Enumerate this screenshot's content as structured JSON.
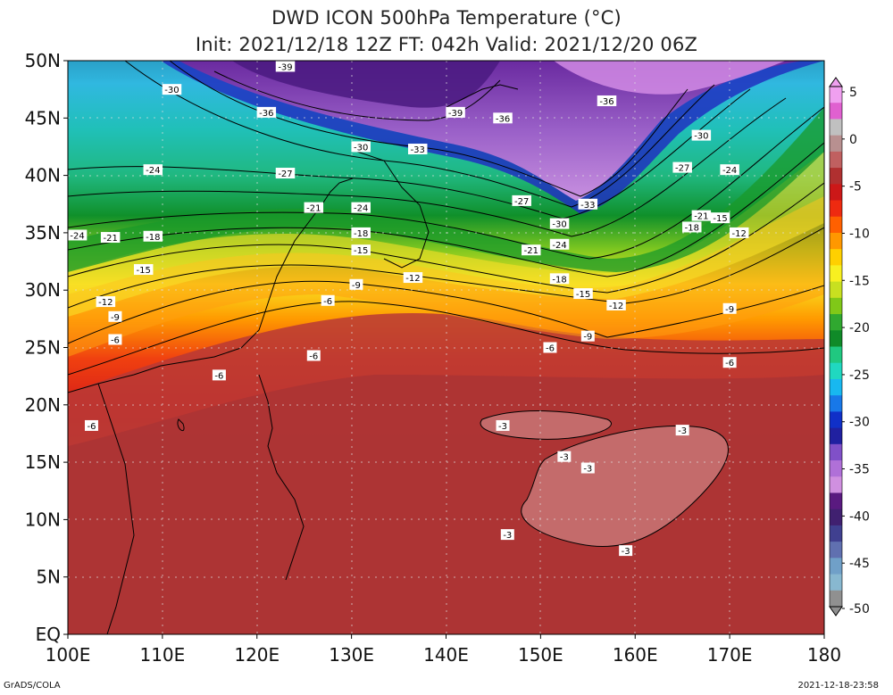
{
  "title": "DWD ICON 500hPa Temperature (°C)",
  "subtitle": "Init: 2021/12/18 12Z  FT: 042h  Valid: 2021/12/20 06Z",
  "footer_left": "GrADS/COLA",
  "footer_right": "2021-12-18-23:58",
  "lat_labels": [
    "EQ",
    "5N",
    "10N",
    "15N",
    "20N",
    "25N",
    "30N",
    "35N",
    "40N",
    "45N",
    "50N"
  ],
  "lon_labels": [
    "100E",
    "110E",
    "120E",
    "130E",
    "140E",
    "150E",
    "160E",
    "170E",
    "180"
  ],
  "colorbar": {
    "labels": [
      "5",
      "0",
      "-5",
      "-10",
      "-15",
      "-20",
      "-25",
      "-30",
      "-35",
      "-40",
      "-45",
      "-50"
    ],
    "colors": [
      "#f0a0f0",
      "#e060d0",
      "#c0c0c0",
      "#b89090",
      "#c06060",
      "#b03030",
      "#cc1818",
      "#ee2a10",
      "#ff6000",
      "#ff9800",
      "#ffd000",
      "#f8f020",
      "#c8e020",
      "#80c818",
      "#30a830",
      "#108a28",
      "#20c880",
      "#20d8c0",
      "#18b8f0",
      "#1878e8",
      "#1030c8",
      "#2020a0",
      "#8050c8",
      "#b070d8",
      "#d090e0",
      "#5a1a80",
      "#402070",
      "#404090",
      "#6070b0",
      "#70a0c8",
      "#88b8d0",
      "#909090"
    ]
  },
  "contour_labels": [
    {
      "text": "-39",
      "lon": 123,
      "lat": 49.5
    },
    {
      "text": "-30",
      "lon": 111,
      "lat": 47.5
    },
    {
      "text": "-36",
      "lon": 121,
      "lat": 45.5
    },
    {
      "text": "-39",
      "lon": 141,
      "lat": 45.5
    },
    {
      "text": "-36",
      "lon": 146,
      "lat": 45
    },
    {
      "text": "-36",
      "lon": 157,
      "lat": 46.5
    },
    {
      "text": "-30",
      "lon": 131,
      "lat": 42.5
    },
    {
      "text": "-33",
      "lon": 137,
      "lat": 42.3
    },
    {
      "text": "-30",
      "lon": 167,
      "lat": 43.5
    },
    {
      "text": "-24",
      "lon": 109,
      "lat": 40.5
    },
    {
      "text": "-27",
      "lon": 123,
      "lat": 40.2
    },
    {
      "text": "-27",
      "lon": 165,
      "lat": 40.7
    },
    {
      "text": "-24",
      "lon": 170,
      "lat": 40.5
    },
    {
      "text": "-27",
      "lon": 148,
      "lat": 37.8
    },
    {
      "text": "-21",
      "lon": 126,
      "lat": 37.2
    },
    {
      "text": "-24",
      "lon": 131,
      "lat": 37.2
    },
    {
      "text": "-33",
      "lon": 155,
      "lat": 37.5
    },
    {
      "text": "-30",
      "lon": 152,
      "lat": 35.8
    },
    {
      "text": "-21",
      "lon": 167,
      "lat": 36.5
    },
    {
      "text": "-15",
      "lon": 169,
      "lat": 36.3
    },
    {
      "text": "-18",
      "lon": 166,
      "lat": 35.5
    },
    {
      "text": "-12",
      "lon": 171,
      "lat": 35
    },
    {
      "text": "-24",
      "lon": 101,
      "lat": 34.8
    },
    {
      "text": "-21",
      "lon": 104.5,
      "lat": 34.6
    },
    {
      "text": "-18",
      "lon": 109,
      "lat": 34.7
    },
    {
      "text": "-18",
      "lon": 131,
      "lat": 35
    },
    {
      "text": "-15",
      "lon": 131,
      "lat": 33.5
    },
    {
      "text": "-24",
      "lon": 152,
      "lat": 34
    },
    {
      "text": "-21",
      "lon": 149,
      "lat": 33.5
    },
    {
      "text": "-15",
      "lon": 108,
      "lat": 31.8
    },
    {
      "text": "-9",
      "lon": 130.5,
      "lat": 30.5
    },
    {
      "text": "-12",
      "lon": 136.5,
      "lat": 31.1
    },
    {
      "text": "-18",
      "lon": 152,
      "lat": 31
    },
    {
      "text": "-15",
      "lon": 154.5,
      "lat": 29.7
    },
    {
      "text": "-12",
      "lon": 104,
      "lat": 29
    },
    {
      "text": "-6",
      "lon": 127.5,
      "lat": 29.1
    },
    {
      "text": "-12",
      "lon": 158,
      "lat": 28.7
    },
    {
      "text": "-9",
      "lon": 170,
      "lat": 28.4
    },
    {
      "text": "-9",
      "lon": 105,
      "lat": 27.7
    },
    {
      "text": "-6",
      "lon": 105,
      "lat": 25.7
    },
    {
      "text": "-9",
      "lon": 155,
      "lat": 26
    },
    {
      "text": "-6",
      "lon": 151,
      "lat": 25
    },
    {
      "text": "-6",
      "lon": 126,
      "lat": 24.3
    },
    {
      "text": "-6",
      "lon": 170,
      "lat": 23.7
    },
    {
      "text": "-6",
      "lon": 116,
      "lat": 22.6
    },
    {
      "text": "-6",
      "lon": 102.5,
      "lat": 18.2
    },
    {
      "text": "-3",
      "lon": 146,
      "lat": 18.2
    },
    {
      "text": "-3",
      "lon": 165,
      "lat": 17.8
    },
    {
      "text": "-3",
      "lon": 152.5,
      "lat": 15.5
    },
    {
      "text": "-3",
      "lon": 155,
      "lat": 14.5
    },
    {
      "text": "-3",
      "lon": 146.5,
      "lat": 8.7
    },
    {
      "text": "-3",
      "lon": 159,
      "lat": 7.3
    }
  ]
}
